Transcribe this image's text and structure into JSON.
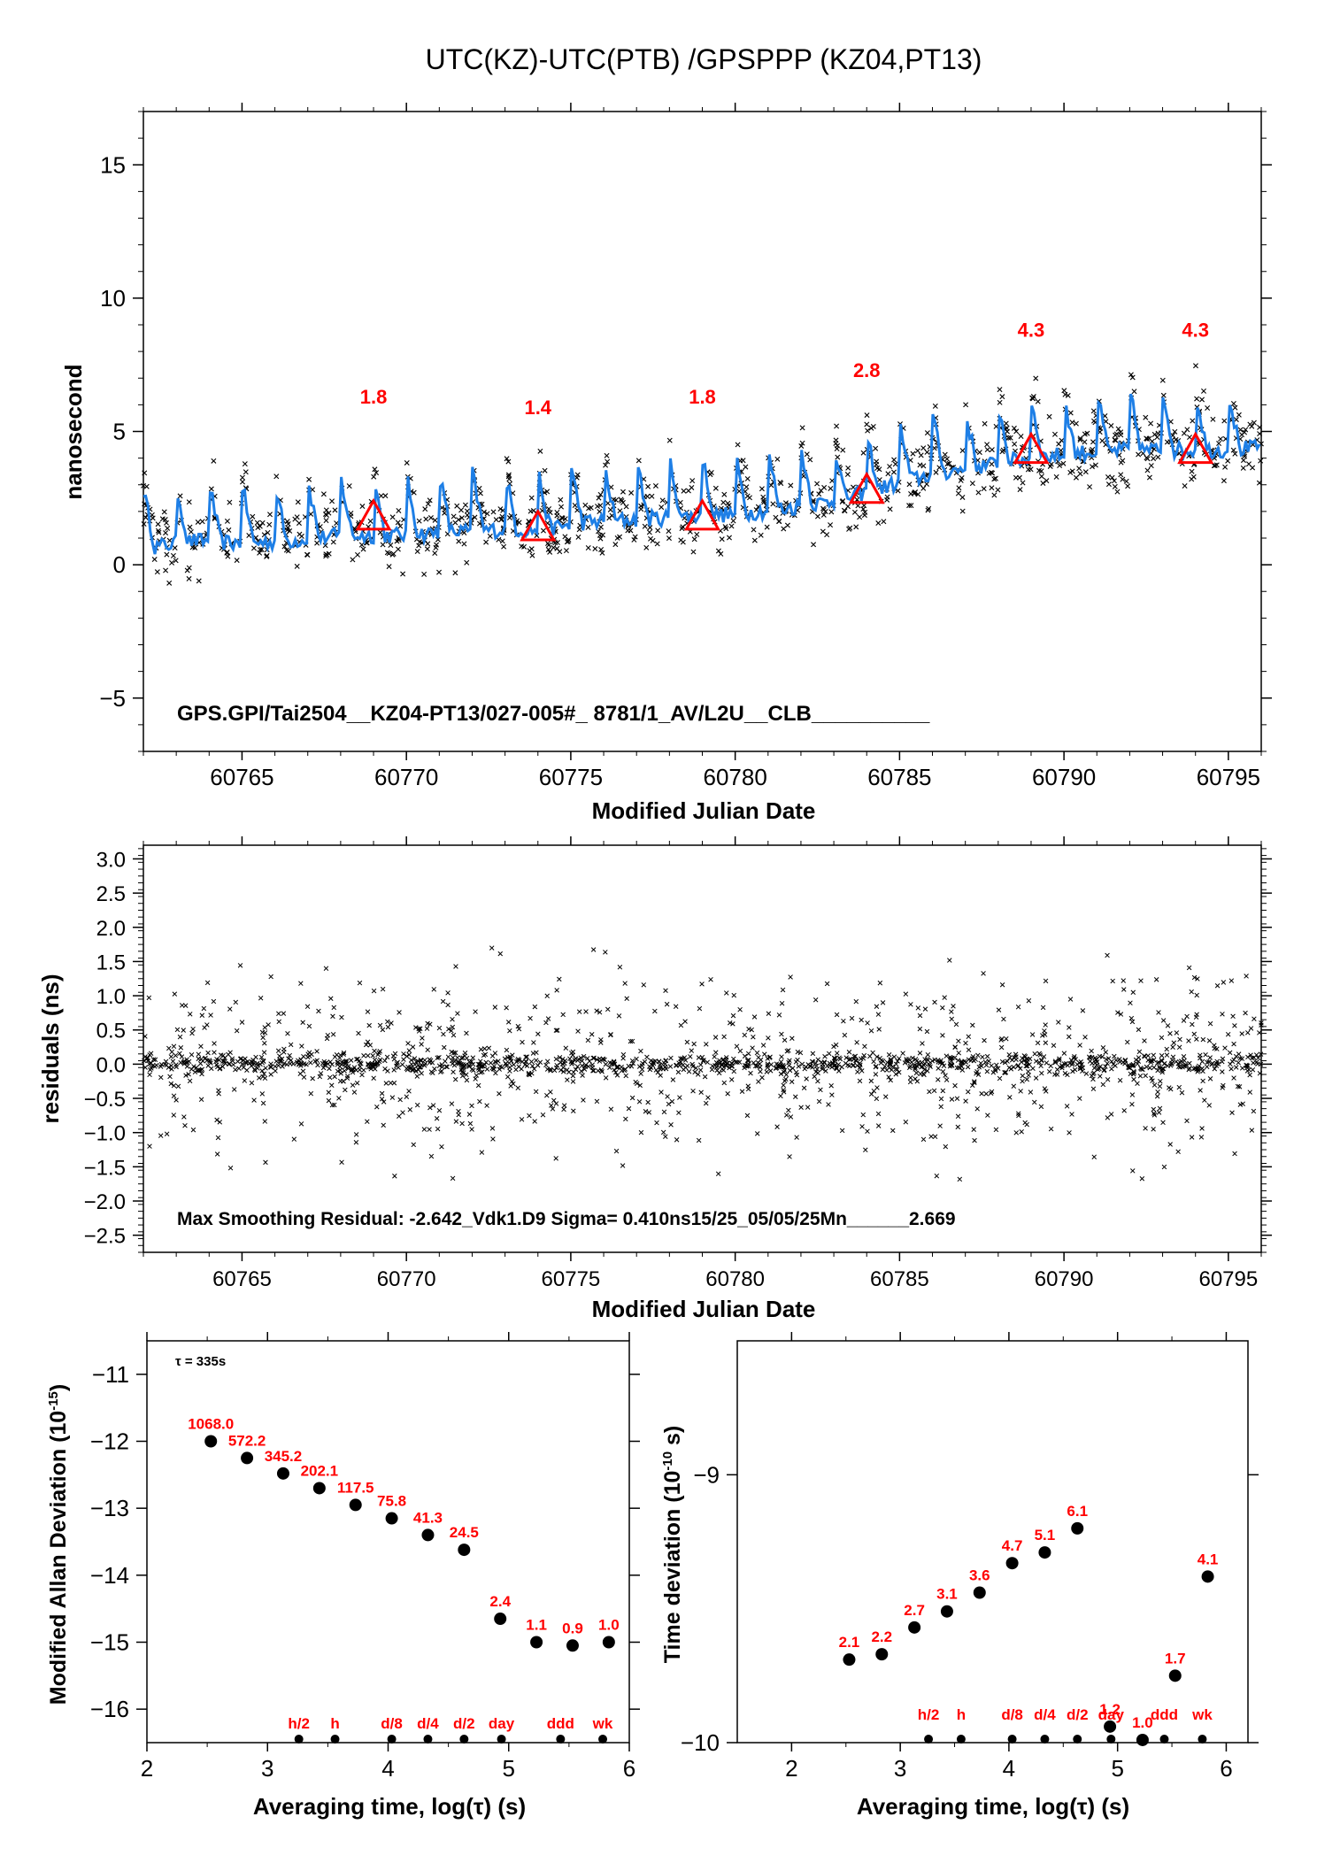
{
  "title": "UTC(KZ)-UTC(PTB)  /GPSPPP  (KZ04,PT13)",
  "colors": {
    "trend": "#1e7fe6",
    "marker": "#ff0000",
    "points": "#000000"
  },
  "chart_data": [
    {
      "type": "scatter",
      "id": "top",
      "xlabel": "Modified Julian Date",
      "ylabel": "nanosecond",
      "xlim": [
        60762,
        60796
      ],
      "ylim": [
        -7,
        17
      ],
      "xticks": [
        60765,
        60770,
        60775,
        60780,
        60785,
        60790,
        60795
      ],
      "yticks": [
        -5,
        0,
        5,
        10,
        15
      ],
      "annotation": "GPS.GPI/Tai2504__KZ04-PT13/027-005#_  8781/1_AV/L2U__CLB__________",
      "trend_points": [
        [
          60762.0,
          0.6
        ],
        [
          60763.5,
          0.9
        ],
        [
          60765.0,
          0.8
        ],
        [
          60766.5,
          0.9
        ],
        [
          60768.0,
          1.1
        ],
        [
          60769.5,
          1.1
        ],
        [
          60771.0,
          1.2
        ],
        [
          60772.5,
          1.3
        ],
        [
          60774.0,
          1.3
        ],
        [
          60775.5,
          1.6
        ],
        [
          60777.0,
          1.7
        ],
        [
          60778.5,
          1.8
        ],
        [
          60780.0,
          1.9
        ],
        [
          60781.5,
          2.1
        ],
        [
          60783.0,
          2.4
        ],
        [
          60784.5,
          2.9
        ],
        [
          60786.0,
          3.4
        ],
        [
          60787.5,
          3.7
        ],
        [
          60789.0,
          4.0
        ],
        [
          60790.5,
          4.2
        ],
        [
          60792.0,
          4.3
        ],
        [
          60793.5,
          4.3
        ],
        [
          60795.0,
          4.3
        ],
        [
          60796.0,
          4.4
        ]
      ],
      "triangles": [
        {
          "x": 60769,
          "y": 1.8,
          "label": "1.8"
        },
        {
          "x": 60774,
          "y": 1.4,
          "label": "1.4"
        },
        {
          "x": 60779,
          "y": 1.8,
          "label": "1.8"
        },
        {
          "x": 60784,
          "y": 2.8,
          "label": "2.8"
        },
        {
          "x": 60789,
          "y": 4.3,
          "label": "4.3"
        },
        {
          "x": 60794,
          "y": 4.3,
          "label": "4.3"
        }
      ]
    },
    {
      "type": "scatter",
      "id": "residuals",
      "xlabel": "Modified Julian Date",
      "ylabel": "residuals (ns)",
      "xlim": [
        60762,
        60796
      ],
      "ylim": [
        -2.75,
        3.2
      ],
      "xticks": [
        60765,
        60770,
        60775,
        60780,
        60785,
        60790,
        60795
      ],
      "yticks": [
        -2.5,
        -2.0,
        -1.5,
        -1.0,
        -0.5,
        0.0,
        0.5,
        1.0,
        1.5,
        2.0,
        2.5,
        3.0
      ],
      "annotation": "Max Smoothing Residual: -2.642_Vdk1.D9  Sigma= 0.410ns15/25_05/05/25Mn______2.669"
    },
    {
      "type": "scatter",
      "id": "mdev",
      "xlabel": "Averaging time, log(τ) (s)",
      "ylabel": "Modified Allan Deviation (10^-15)",
      "xlim": [
        2,
        6
      ],
      "ylim": [
        -16.5,
        -10.5
      ],
      "xticks": [
        2,
        3,
        4,
        5,
        6
      ],
      "yticks": [
        -16,
        -15,
        -14,
        -13,
        -12,
        -11
      ],
      "tau_label": "τ = 335s",
      "points": [
        {
          "x": 2.53,
          "y": -12.0,
          "label": "1068.0"
        },
        {
          "x": 2.83,
          "y": -12.25,
          "label": "572.2"
        },
        {
          "x": 3.13,
          "y": -12.48,
          "label": "345.2"
        },
        {
          "x": 3.43,
          "y": -12.7,
          "label": "202.1"
        },
        {
          "x": 3.73,
          "y": -12.95,
          "label": "117.5"
        },
        {
          "x": 4.03,
          "y": -13.15,
          "label": "75.8"
        },
        {
          "x": 4.33,
          "y": -13.4,
          "label": "41.3"
        },
        {
          "x": 4.63,
          "y": -13.62,
          "label": "24.5"
        },
        {
          "x": 4.93,
          "y": -14.65,
          "label": "2.4"
        },
        {
          "x": 5.23,
          "y": -15.0,
          "label": "1.1"
        },
        {
          "x": 5.53,
          "y": -15.05,
          "label": "0.9"
        },
        {
          "x": 5.83,
          "y": -15.0,
          "label": "1.0"
        }
      ],
      "markers": [
        {
          "x": 3.26,
          "label": "h/2"
        },
        {
          "x": 3.56,
          "label": "h"
        },
        {
          "x": 4.03,
          "label": "d/8"
        },
        {
          "x": 4.33,
          "label": "d/4"
        },
        {
          "x": 4.63,
          "label": "d/2"
        },
        {
          "x": 4.94,
          "label": "day"
        },
        {
          "x": 5.43,
          "label": "ddd"
        },
        {
          "x": 5.78,
          "label": "wk"
        }
      ]
    },
    {
      "type": "scatter",
      "id": "tdev",
      "xlabel": "Averaging time, log(τ) (s)",
      "ylabel": "Time deviation (10^-10 s)",
      "xlim": [
        1.5,
        6.2
      ],
      "ylim": [
        -10,
        -8.5
      ],
      "xticks": [
        2,
        3,
        4,
        5,
        6
      ],
      "yticks": [
        -10,
        -9
      ],
      "points": [
        {
          "x": 2.53,
          "y": -9.69,
          "label": "2.1"
        },
        {
          "x": 2.83,
          "y": -9.67,
          "label": "2.2"
        },
        {
          "x": 3.13,
          "y": -9.57,
          "label": "2.7"
        },
        {
          "x": 3.43,
          "y": -9.51,
          "label": "3.1"
        },
        {
          "x": 3.73,
          "y": -9.44,
          "label": "3.6"
        },
        {
          "x": 4.03,
          "y": -9.33,
          "label": "4.7"
        },
        {
          "x": 4.33,
          "y": -9.29,
          "label": "5.1"
        },
        {
          "x": 4.63,
          "y": -9.2,
          "label": "6.1"
        },
        {
          "x": 4.93,
          "y": -9.94,
          "label": "1.2"
        },
        {
          "x": 5.23,
          "y": -9.99,
          "label": "1.0"
        },
        {
          "x": 5.53,
          "y": -9.75,
          "label": "1.7"
        },
        {
          "x": 5.83,
          "y": -9.38,
          "label": "4.1"
        }
      ],
      "markers": [
        {
          "x": 3.26,
          "label": "h/2"
        },
        {
          "x": 3.56,
          "label": "h"
        },
        {
          "x": 4.03,
          "label": "d/8"
        },
        {
          "x": 4.33,
          "label": "d/4"
        },
        {
          "x": 4.63,
          "label": "d/2"
        },
        {
          "x": 4.94,
          "label": "day"
        },
        {
          "x": 5.43,
          "label": "ddd"
        },
        {
          "x": 5.78,
          "label": "wk"
        }
      ]
    }
  ]
}
